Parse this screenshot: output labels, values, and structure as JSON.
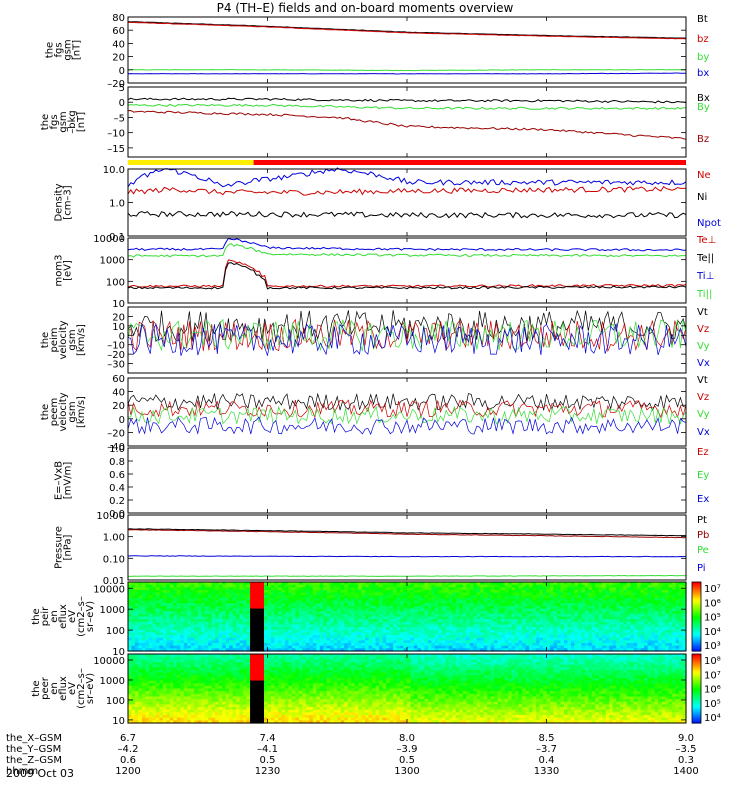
{
  "title": "P4 (TH–E) fields and on-board moments overview",
  "date_label": "2009 Oct 03",
  "colors": {
    "black": "#000000",
    "red": "#cc0000",
    "dark_red": "#990000",
    "green": "#33dd33",
    "blue": "#0000dd",
    "yellow": "#ffee00",
    "bar_red": "#ff0000"
  },
  "chart_data": [
    {
      "id": "fgs-gsm",
      "type": "line",
      "ylabel": [
        "the",
        "fgs",
        "gsm",
        "[nT]"
      ],
      "ylim": [
        -20,
        80
      ],
      "yticks": [
        "80",
        "60",
        "40",
        "20",
        "0",
        "–20"
      ],
      "yticks_values": [
        80,
        60,
        40,
        20,
        0,
        -20
      ],
      "series": [
        {
          "name": "Bt",
          "color": "#000000",
          "x": [
            1200,
            1230,
            1300,
            1330,
            1400
          ],
          "values": [
            73,
            66,
            57,
            52,
            48
          ]
        },
        {
          "name": "bz",
          "color": "#cc0000",
          "x": [
            1200,
            1230,
            1300,
            1330,
            1400
          ],
          "values": [
            72,
            65,
            56,
            51,
            47
          ]
        },
        {
          "name": "by",
          "color": "#33dd33",
          "x": [
            1200,
            1230,
            1300,
            1330,
            1400
          ],
          "values": [
            0,
            0,
            -1,
            0,
            0
          ]
        },
        {
          "name": "bx",
          "color": "#0000dd",
          "x": [
            1200,
            1230,
            1300,
            1330,
            1400
          ],
          "values": [
            -6,
            -6,
            -6,
            -6,
            -5
          ]
        }
      ]
    },
    {
      "id": "fgs-gse",
      "type": "line",
      "ylabel": [
        "the",
        "fgs",
        "gsm",
        "–bkg",
        "[nT]"
      ],
      "ylim": [
        -18,
        5
      ],
      "yticks": [
        "5",
        "0",
        "–5",
        "–10",
        "–15"
      ],
      "yticks_values": [
        5,
        0,
        -5,
        -10,
        -15
      ],
      "series": [
        {
          "name": "Bx",
          "color": "#000000",
          "x": [
            1200,
            1230,
            1300,
            1330,
            1400
          ],
          "values": [
            1,
            1,
            0.5,
            0.5,
            0
          ]
        },
        {
          "name": "By",
          "color": "#33dd33",
          "x": [
            1200,
            1230,
            1300,
            1330,
            1400
          ],
          "values": [
            -1,
            -1,
            -2,
            -2,
            -2
          ]
        },
        {
          "name": "Bz",
          "color": "#990000",
          "x": [
            1200,
            1230,
            1245,
            1300,
            1330,
            1350,
            1400
          ],
          "values": [
            -3,
            -4,
            -5,
            -8,
            -9,
            -11,
            -12
          ]
        }
      ]
    },
    {
      "id": "density",
      "type": "line",
      "scale": "log",
      "ylabel": [
        "Density",
        "[cm–3]"
      ],
      "ylim": [
        0.1,
        10
      ],
      "yticks": [
        "10.0",
        "1.0",
        "0.1"
      ],
      "yticks_values": [
        10,
        1,
        0.1
      ],
      "series": [
        {
          "name": "Ne",
          "color": "#cc0000",
          "x": [
            1200,
            1210,
            1220,
            1240,
            1300,
            1330,
            1400
          ],
          "values": [
            2,
            2.5,
            2,
            2,
            2.2,
            2.4,
            2.5
          ]
        },
        {
          "name": "Ni",
          "color": "#000000",
          "x": [
            1200,
            1230,
            1300,
            1400
          ],
          "values": [
            0.45,
            0.45,
            0.42,
            0.42
          ]
        },
        {
          "name": "Npot",
          "color": "#0000dd",
          "x": [
            1200,
            1208,
            1220,
            1235,
            1245,
            1300,
            1400
          ],
          "values": [
            3,
            10,
            3,
            6,
            10,
            4,
            4
          ]
        }
      ]
    },
    {
      "id": "temperature",
      "type": "line",
      "scale": "log",
      "ylabel": [
        "mom3",
        "[eV]"
      ],
      "ylim": [
        10,
        10000
      ],
      "yticks": [
        "10000",
        "1000",
        "100",
        "10"
      ],
      "yticks_values": [
        10000,
        1000,
        100,
        10
      ],
      "series": [
        {
          "name": "Te⊥",
          "color": "#cc0000",
          "x": [
            1200,
            1220,
            1222,
            1230,
            1300,
            1400
          ],
          "values": [
            60,
            60,
            900,
            60,
            60,
            65
          ]
        },
        {
          "name": "Te||",
          "color": "#000000",
          "x": [
            1200,
            1220,
            1222,
            1230,
            1300,
            1400
          ],
          "values": [
            50,
            50,
            700,
            50,
            50,
            55
          ]
        },
        {
          "name": "Ti⊥",
          "color": "#0000dd",
          "x": [
            1200,
            1220,
            1222,
            1230,
            1300,
            1400
          ],
          "values": [
            3000,
            3000,
            9000,
            3500,
            3000,
            2800
          ]
        },
        {
          "name": "Ti||",
          "color": "#33dd33",
          "x": [
            1200,
            1220,
            1222,
            1230,
            1300,
            1400
          ],
          "values": [
            1500,
            1500,
            5000,
            1800,
            1600,
            1500
          ]
        }
      ]
    },
    {
      "id": "peim-velocity",
      "type": "line",
      "ylabel": [
        "the",
        "peim",
        "velocity",
        "gsm",
        "[km/s]"
      ],
      "ylim": [
        -40,
        30
      ],
      "yticks": [
        "20",
        "10",
        "0",
        "–10",
        "–20",
        "–30"
      ],
      "yticks_values": [
        20,
        10,
        0,
        -10,
        -20,
        -30
      ],
      "series": [
        {
          "name": "Vt",
          "color": "#000000",
          "x": [
            1200,
            1400
          ],
          "values": [
            10,
            10
          ]
        },
        {
          "name": "Vz",
          "color": "#cc0000",
          "x": [
            1200,
            1400
          ],
          "values": [
            0,
            0
          ]
        },
        {
          "name": "Vy",
          "color": "#33dd33",
          "x": [
            1200,
            1400
          ],
          "values": [
            0,
            0
          ]
        },
        {
          "name": "Vx",
          "color": "#0000dd",
          "x": [
            1200,
            1400
          ],
          "values": [
            -5,
            -5
          ]
        }
      ]
    },
    {
      "id": "peem-velocity",
      "type": "line",
      "ylabel": [
        "the",
        "peem",
        "velocity",
        "gsm",
        "[km/s]"
      ],
      "ylim": [
        -40,
        60
      ],
      "yticks": [
        "60",
        "40",
        "20",
        "0",
        "–20",
        "–40"
      ],
      "yticks_values": [
        60,
        40,
        20,
        0,
        -20,
        -40
      ],
      "series": [
        {
          "name": "Vt",
          "color": "#000000",
          "x": [
            1200,
            1400
          ],
          "values": [
            25,
            25
          ]
        },
        {
          "name": "Vz",
          "color": "#cc0000",
          "x": [
            1200,
            1400
          ],
          "values": [
            15,
            15
          ]
        },
        {
          "name": "Vy",
          "color": "#33dd33",
          "x": [
            1200,
            1400
          ],
          "values": [
            5,
            5
          ]
        },
        {
          "name": "Vx",
          "color": "#0000dd",
          "x": [
            1200,
            1400
          ],
          "values": [
            -10,
            -10
          ]
        }
      ]
    },
    {
      "id": "e-field",
      "type": "line",
      "ylabel": [
        "E=–VxB",
        "[mV/m]"
      ],
      "ylim": [
        0,
        1
      ],
      "yticks": [
        "1.0",
        "0.8",
        "0.6",
        "0.4",
        "0.2",
        "0.0"
      ],
      "yticks_values": [
        1,
        0.8,
        0.6,
        0.4,
        0.2,
        0
      ],
      "series": [
        {
          "name": "Ez",
          "color": "#cc0000",
          "x": [],
          "values": []
        },
        {
          "name": "Ey",
          "color": "#33dd33",
          "x": [],
          "values": []
        },
        {
          "name": "Ex",
          "color": "#0000dd",
          "x": [],
          "values": []
        }
      ]
    },
    {
      "id": "pressure",
      "type": "line",
      "scale": "log",
      "ylabel": [
        "Pressure",
        "[nPa]"
      ],
      "ylim": [
        0.01,
        10
      ],
      "yticks": [
        "10.00",
        "1.00",
        "0.10",
        "0.01"
      ],
      "yticks_values": [
        10,
        1,
        0.1,
        0.01
      ],
      "series": [
        {
          "name": "Pt",
          "color": "#000000",
          "x": [
            1200,
            1230,
            1300,
            1330,
            1400
          ],
          "values": [
            2.3,
            1.9,
            1.5,
            1.3,
            1.1
          ]
        },
        {
          "name": "Pb",
          "color": "#990000",
          "x": [
            1200,
            1230,
            1300,
            1330,
            1400
          ],
          "values": [
            2.1,
            1.7,
            1.3,
            1.1,
            0.9
          ]
        },
        {
          "name": "Pe",
          "color": "#33dd33",
          "x": [
            1200,
            1300,
            1400
          ],
          "values": [
            0.015,
            0.015,
            0.016
          ]
        },
        {
          "name": "Pi",
          "color": "#0000dd",
          "x": [
            1200,
            1300,
            1400
          ],
          "values": [
            0.13,
            0.12,
            0.12
          ]
        }
      ]
    },
    {
      "id": "peir-spectrogram",
      "type": "heatmap",
      "ylabel": [
        "the",
        "peir",
        "en",
        "eflux",
        "eV",
        "(cm2–s–",
        "sr–eV)"
      ],
      "scale": "log",
      "ylim": [
        10,
        20000
      ],
      "yticks": [
        "10000",
        "1000",
        "100",
        "10"
      ],
      "yticks_values": [
        10000,
        1000,
        100,
        10
      ],
      "colorbar_ticks": [
        "10⁷",
        "10⁶",
        "10⁵",
        "10⁴",
        "10³"
      ],
      "colorbar_range": [
        3,
        7
      ]
    },
    {
      "id": "peer-spectrogram",
      "type": "heatmap",
      "ylabel": [
        "the",
        "peer",
        "en",
        "eflux",
        "eV",
        "(cm2–s–",
        "sr–eV)"
      ],
      "scale": "log",
      "ylim": [
        7,
        20000
      ],
      "yticks": [
        "10000",
        "1000",
        "100",
        "10"
      ],
      "yticks_values": [
        10000,
        1000,
        100,
        10
      ],
      "colorbar_ticks": [
        "10⁸",
        "10⁷",
        "10⁶",
        "10⁵",
        "10⁴"
      ],
      "colorbar_range": [
        4,
        8
      ]
    }
  ],
  "x_axis": {
    "range": [
      1200,
      1400
    ],
    "tick_values": [
      1200,
      1230,
      1300,
      1330,
      1400
    ],
    "rows": [
      {
        "label": "the_X–GSM",
        "values": [
          "6.7",
          "7.4",
          "8.0",
          "8.5",
          "9.0"
        ]
      },
      {
        "label": "the_Y–GSM",
        "values": [
          "–4.2",
          "–4.1",
          "–3.9",
          "–3.7",
          "–3.5"
        ]
      },
      {
        "label": "the_Z–GSM",
        "values": [
          "0.6",
          "0.5",
          "0.5",
          "0.4",
          "0.3"
        ]
      },
      {
        "label": "hhmm",
        "values": [
          "1200",
          "1230",
          "1300",
          "1330",
          "1400"
        ]
      }
    ]
  },
  "mode_bar": {
    "segments": [
      {
        "from": 1200,
        "to": 1227,
        "color": "#ffee00"
      },
      {
        "from": 1227,
        "to": 1400,
        "color": "#ff0000"
      }
    ]
  }
}
